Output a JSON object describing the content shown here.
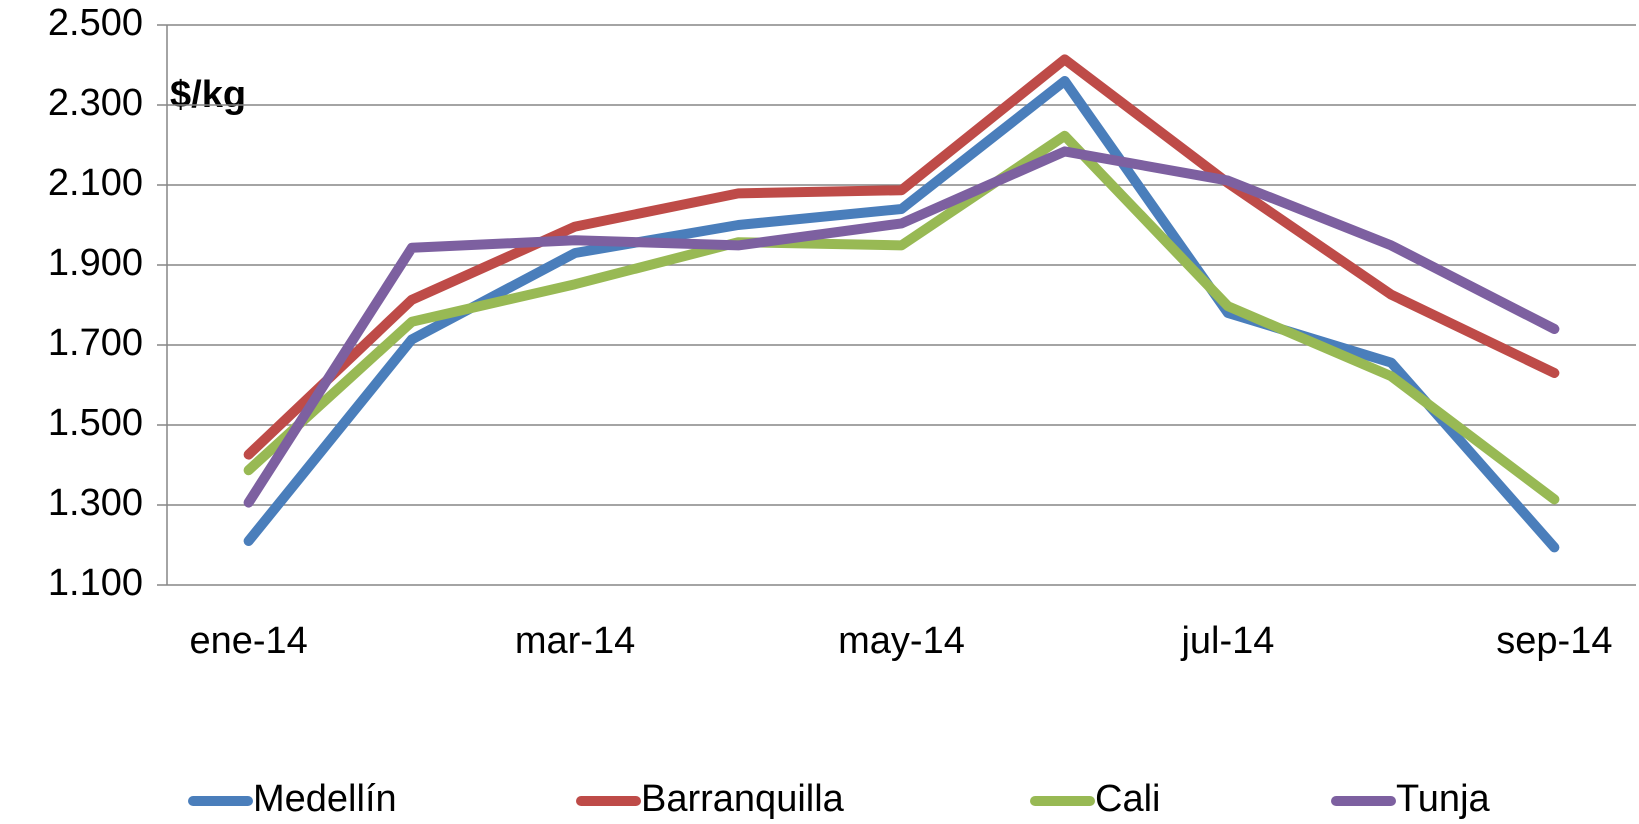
{
  "chart_data": {
    "type": "line",
    "unit_label": "$/kg",
    "categories": [
      "ene-14",
      null,
      "mar-14",
      null,
      "may-14",
      null,
      "jul-14",
      null,
      "sep-14"
    ],
    "series": [
      {
        "name": "Medellín",
        "color": "#4a7ebb",
        "values": [
          1210,
          1714,
          1930,
          2000,
          2040,
          2360,
          1780,
          1656,
          1194
        ]
      },
      {
        "name": "Barranquilla",
        "color": "#be4b48",
        "values": [
          1426,
          1813,
          1996,
          2079,
          2087,
          2414,
          2105,
          1826,
          1630
        ]
      },
      {
        "name": "Cali",
        "color": "#98b954",
        "values": [
          1387,
          1758,
          1852,
          1957,
          1949,
          2223,
          1797,
          1622,
          1314
        ]
      },
      {
        "name": "Tunja",
        "color": "#7d60a0",
        "values": [
          1306,
          1943,
          1962,
          1949,
          2004,
          2184,
          2111,
          1949,
          1740
        ]
      }
    ],
    "ylim": [
      1100,
      2500
    ],
    "yticks": [
      {
        "value": 1100,
        "label": "1.100"
      },
      {
        "value": 1300,
        "label": "1.300"
      },
      {
        "value": 1500,
        "label": "1.500"
      },
      {
        "value": 1700,
        "label": "1.700"
      },
      {
        "value": 1900,
        "label": "1.900"
      },
      {
        "value": 2100,
        "label": "2.100"
      },
      {
        "value": 2300,
        "label": "2.300"
      },
      {
        "value": 2500,
        "label": "2.500"
      }
    ],
    "grid": true,
    "legend": "bottom"
  }
}
